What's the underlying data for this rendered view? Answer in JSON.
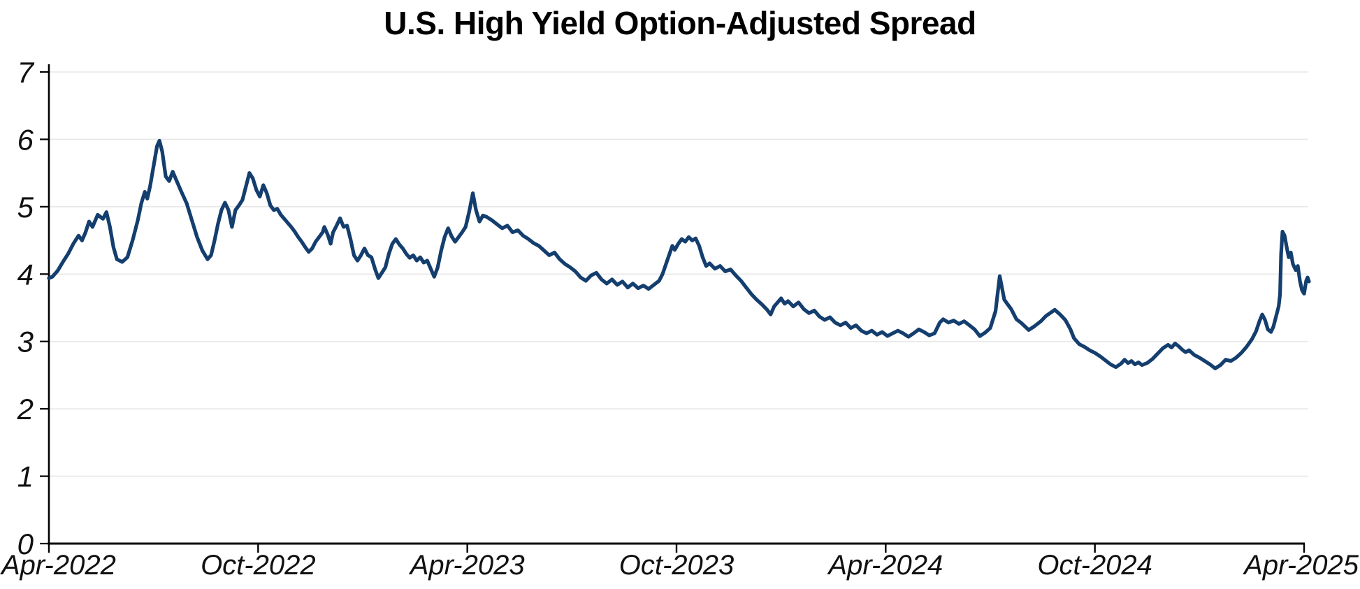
{
  "page": {
    "background": "#ffffff"
  },
  "header": {
    "title": "U.S. High Yield Option-Adjusted Spread"
  },
  "chart_data": {
    "type": "line",
    "title": "U.S. High Yield Option-Adjusted Spread",
    "series_name": "U.S. High Yield Option-Adjusted Spread",
    "unit": "percent",
    "xlabel": "",
    "ylabel": "",
    "ylim": [
      0,
      7
    ],
    "y_ticks": [
      0,
      1,
      2,
      3,
      4,
      5,
      6,
      7
    ],
    "x_unit": "months since Apr-2022",
    "x_range": [
      0,
      36.2
    ],
    "x_ticks": [
      {
        "t": 0,
        "label": "Apr-2022"
      },
      {
        "t": 6,
        "label": "Oct-2022"
      },
      {
        "t": 12,
        "label": "Apr-2023"
      },
      {
        "t": 18,
        "label": "Oct-2023"
      },
      {
        "t": 24,
        "label": "Apr-2024"
      },
      {
        "t": 30,
        "label": "Oct-2024"
      },
      {
        "t": 36,
        "label": "Apr-2025"
      }
    ],
    "grid": "horizontal",
    "legend": "none",
    "line_color": "#143e6e",
    "axis_color": "#000000",
    "grid_color": "#e7e7e7",
    "label_color": "#111111",
    "points": [
      [
        0,
        3.94
      ],
      [
        0.1,
        3.96
      ],
      [
        0.25,
        4.05
      ],
      [
        0.4,
        4.18
      ],
      [
        0.55,
        4.3
      ],
      [
        0.7,
        4.45
      ],
      [
        0.85,
        4.57
      ],
      [
        0.95,
        4.5
      ],
      [
        1.05,
        4.62
      ],
      [
        1.15,
        4.78
      ],
      [
        1.25,
        4.7
      ],
      [
        1.4,
        4.88
      ],
      [
        1.55,
        4.82
      ],
      [
        1.65,
        4.92
      ],
      [
        1.75,
        4.7
      ],
      [
        1.85,
        4.4
      ],
      [
        1.95,
        4.22
      ],
      [
        2.1,
        4.18
      ],
      [
        2.25,
        4.25
      ],
      [
        2.4,
        4.5
      ],
      [
        2.55,
        4.8
      ],
      [
        2.65,
        5.05
      ],
      [
        2.75,
        5.22
      ],
      [
        2.82,
        5.12
      ],
      [
        2.9,
        5.3
      ],
      [
        3,
        5.6
      ],
      [
        3.1,
        5.9
      ],
      [
        3.17,
        5.98
      ],
      [
        3.25,
        5.82
      ],
      [
        3.35,
        5.45
      ],
      [
        3.45,
        5.38
      ],
      [
        3.55,
        5.52
      ],
      [
        3.65,
        5.4
      ],
      [
        3.8,
        5.22
      ],
      [
        3.95,
        5.05
      ],
      [
        4.1,
        4.8
      ],
      [
        4.25,
        4.55
      ],
      [
        4.4,
        4.35
      ],
      [
        4.55,
        4.22
      ],
      [
        4.65,
        4.28
      ],
      [
        4.75,
        4.5
      ],
      [
        4.85,
        4.75
      ],
      [
        4.95,
        4.95
      ],
      [
        5.05,
        5.06
      ],
      [
        5.15,
        4.95
      ],
      [
        5.25,
        4.7
      ],
      [
        5.35,
        4.95
      ],
      [
        5.45,
        5.02
      ],
      [
        5.55,
        5.1
      ],
      [
        5.65,
        5.3
      ],
      [
        5.75,
        5.5
      ],
      [
        5.85,
        5.42
      ],
      [
        5.95,
        5.25
      ],
      [
        6.05,
        5.15
      ],
      [
        6.15,
        5.32
      ],
      [
        6.25,
        5.2
      ],
      [
        6.35,
        5.02
      ],
      [
        6.45,
        4.95
      ],
      [
        6.55,
        4.97
      ],
      [
        6.65,
        4.88
      ],
      [
        6.75,
        4.82
      ],
      [
        6.85,
        4.76
      ],
      [
        6.95,
        4.7
      ],
      [
        7.05,
        4.63
      ],
      [
        7.15,
        4.55
      ],
      [
        7.25,
        4.48
      ],
      [
        7.35,
        4.4
      ],
      [
        7.45,
        4.33
      ],
      [
        7.55,
        4.38
      ],
      [
        7.65,
        4.48
      ],
      [
        7.75,
        4.55
      ],
      [
        7.85,
        4.62
      ],
      [
        7.9,
        4.7
      ],
      [
        8,
        4.58
      ],
      [
        8.08,
        4.45
      ],
      [
        8.15,
        4.62
      ],
      [
        8.25,
        4.72
      ],
      [
        8.35,
        4.83
      ],
      [
        8.45,
        4.7
      ],
      [
        8.55,
        4.72
      ],
      [
        8.65,
        4.52
      ],
      [
        8.75,
        4.28
      ],
      [
        8.85,
        4.2
      ],
      [
        8.95,
        4.28
      ],
      [
        9.05,
        4.38
      ],
      [
        9.15,
        4.28
      ],
      [
        9.25,
        4.25
      ],
      [
        9.35,
        4.08
      ],
      [
        9.45,
        3.94
      ],
      [
        9.55,
        4.02
      ],
      [
        9.65,
        4.1
      ],
      [
        9.75,
        4.3
      ],
      [
        9.85,
        4.45
      ],
      [
        9.95,
        4.52
      ],
      [
        10.05,
        4.44
      ],
      [
        10.15,
        4.38
      ],
      [
        10.25,
        4.3
      ],
      [
        10.35,
        4.24
      ],
      [
        10.45,
        4.28
      ],
      [
        10.55,
        4.2
      ],
      [
        10.65,
        4.25
      ],
      [
        10.75,
        4.17
      ],
      [
        10.85,
        4.2
      ],
      [
        10.95,
        4.08
      ],
      [
        11.05,
        3.96
      ],
      [
        11.15,
        4.1
      ],
      [
        11.25,
        4.35
      ],
      [
        11.35,
        4.55
      ],
      [
        11.45,
        4.68
      ],
      [
        11.55,
        4.56
      ],
      [
        11.65,
        4.48
      ],
      [
        11.75,
        4.55
      ],
      [
        11.85,
        4.62
      ],
      [
        11.95,
        4.7
      ],
      [
        12.05,
        4.92
      ],
      [
        12.16,
        5.2
      ],
      [
        12.25,
        4.95
      ],
      [
        12.35,
        4.78
      ],
      [
        12.45,
        4.87
      ],
      [
        12.55,
        4.85
      ],
      [
        12.7,
        4.8
      ],
      [
        12.85,
        4.74
      ],
      [
        13,
        4.68
      ],
      [
        13.15,
        4.72
      ],
      [
        13.3,
        4.62
      ],
      [
        13.45,
        4.65
      ],
      [
        13.6,
        4.57
      ],
      [
        13.75,
        4.52
      ],
      [
        13.9,
        4.46
      ],
      [
        14.05,
        4.42
      ],
      [
        14.2,
        4.35
      ],
      [
        14.35,
        4.28
      ],
      [
        14.5,
        4.32
      ],
      [
        14.65,
        4.22
      ],
      [
        14.8,
        4.15
      ],
      [
        14.95,
        4.1
      ],
      [
        15.1,
        4.04
      ],
      [
        15.25,
        3.95
      ],
      [
        15.4,
        3.9
      ],
      [
        15.55,
        3.98
      ],
      [
        15.7,
        4.02
      ],
      [
        15.85,
        3.92
      ],
      [
        16,
        3.86
      ],
      [
        16.15,
        3.92
      ],
      [
        16.3,
        3.84
      ],
      [
        16.45,
        3.89
      ],
      [
        16.6,
        3.8
      ],
      [
        16.75,
        3.86
      ],
      [
        16.9,
        3.79
      ],
      [
        17.05,
        3.83
      ],
      [
        17.2,
        3.78
      ],
      [
        17.35,
        3.84
      ],
      [
        17.5,
        3.9
      ],
      [
        17.6,
        4
      ],
      [
        17.7,
        4.15
      ],
      [
        17.8,
        4.3
      ],
      [
        17.88,
        4.42
      ],
      [
        17.95,
        4.36
      ],
      [
        18.05,
        4.45
      ],
      [
        18.15,
        4.52
      ],
      [
        18.25,
        4.48
      ],
      [
        18.35,
        4.55
      ],
      [
        18.45,
        4.5
      ],
      [
        18.55,
        4.53
      ],
      [
        18.65,
        4.42
      ],
      [
        18.75,
        4.25
      ],
      [
        18.85,
        4.12
      ],
      [
        18.95,
        4.16
      ],
      [
        19.1,
        4.08
      ],
      [
        19.25,
        4.12
      ],
      [
        19.4,
        4.04
      ],
      [
        19.55,
        4.07
      ],
      [
        19.7,
        3.98
      ],
      [
        19.85,
        3.9
      ],
      [
        20,
        3.8
      ],
      [
        20.15,
        3.7
      ],
      [
        20.3,
        3.62
      ],
      [
        20.45,
        3.55
      ],
      [
        20.6,
        3.47
      ],
      [
        20.7,
        3.4
      ],
      [
        20.8,
        3.52
      ],
      [
        20.9,
        3.58
      ],
      [
        21,
        3.64
      ],
      [
        21.1,
        3.56
      ],
      [
        21.2,
        3.6
      ],
      [
        21.35,
        3.52
      ],
      [
        21.5,
        3.58
      ],
      [
        21.65,
        3.48
      ],
      [
        21.8,
        3.42
      ],
      [
        21.95,
        3.46
      ],
      [
        22.1,
        3.37
      ],
      [
        22.25,
        3.32
      ],
      [
        22.4,
        3.36
      ],
      [
        22.55,
        3.28
      ],
      [
        22.7,
        3.24
      ],
      [
        22.85,
        3.28
      ],
      [
        23,
        3.2
      ],
      [
        23.15,
        3.24
      ],
      [
        23.3,
        3.16
      ],
      [
        23.45,
        3.12
      ],
      [
        23.6,
        3.16
      ],
      [
        23.75,
        3.1
      ],
      [
        23.9,
        3.14
      ],
      [
        24.05,
        3.08
      ],
      [
        24.2,
        3.12
      ],
      [
        24.35,
        3.16
      ],
      [
        24.5,
        3.12
      ],
      [
        24.65,
        3.07
      ],
      [
        24.8,
        3.12
      ],
      [
        24.95,
        3.18
      ],
      [
        25.1,
        3.14
      ],
      [
        25.25,
        3.09
      ],
      [
        25.4,
        3.12
      ],
      [
        25.55,
        3.28
      ],
      [
        25.65,
        3.33
      ],
      [
        25.8,
        3.28
      ],
      [
        25.95,
        3.31
      ],
      [
        26.1,
        3.26
      ],
      [
        26.25,
        3.3
      ],
      [
        26.4,
        3.24
      ],
      [
        26.55,
        3.18
      ],
      [
        26.7,
        3.08
      ],
      [
        26.85,
        3.13
      ],
      [
        27,
        3.2
      ],
      [
        27.15,
        3.45
      ],
      [
        27.27,
        3.97
      ],
      [
        27.4,
        3.62
      ],
      [
        27.5,
        3.55
      ],
      [
        27.6,
        3.48
      ],
      [
        27.75,
        3.33
      ],
      [
        27.9,
        3.27
      ],
      [
        28.1,
        3.17
      ],
      [
        28.25,
        3.22
      ],
      [
        28.45,
        3.3
      ],
      [
        28.6,
        3.38
      ],
      [
        28.85,
        3.47
      ],
      [
        29,
        3.4
      ],
      [
        29.15,
        3.32
      ],
      [
        29.3,
        3.18
      ],
      [
        29.4,
        3.05
      ],
      [
        29.55,
        2.96
      ],
      [
        29.7,
        2.92
      ],
      [
        29.85,
        2.87
      ],
      [
        30,
        2.83
      ],
      [
        30.15,
        2.78
      ],
      [
        30.3,
        2.72
      ],
      [
        30.45,
        2.66
      ],
      [
        30.6,
        2.62
      ],
      [
        30.75,
        2.67
      ],
      [
        30.85,
        2.73
      ],
      [
        30.95,
        2.68
      ],
      [
        31.05,
        2.71
      ],
      [
        31.15,
        2.66
      ],
      [
        31.25,
        2.69
      ],
      [
        31.35,
        2.65
      ],
      [
        31.5,
        2.68
      ],
      [
        31.65,
        2.74
      ],
      [
        31.8,
        2.82
      ],
      [
        31.95,
        2.9
      ],
      [
        32.1,
        2.95
      ],
      [
        32.2,
        2.91
      ],
      [
        32.3,
        2.97
      ],
      [
        32.4,
        2.93
      ],
      [
        32.5,
        2.88
      ],
      [
        32.6,
        2.84
      ],
      [
        32.7,
        2.87
      ],
      [
        32.85,
        2.8
      ],
      [
        33,
        2.76
      ],
      [
        33.15,
        2.71
      ],
      [
        33.3,
        2.66
      ],
      [
        33.45,
        2.6
      ],
      [
        33.6,
        2.65
      ],
      [
        33.75,
        2.73
      ],
      [
        33.9,
        2.71
      ],
      [
        34.05,
        2.76
      ],
      [
        34.2,
        2.83
      ],
      [
        34.35,
        2.92
      ],
      [
        34.5,
        3.03
      ],
      [
        34.62,
        3.15
      ],
      [
        34.72,
        3.3
      ],
      [
        34.8,
        3.4
      ],
      [
        34.88,
        3.32
      ],
      [
        34.96,
        3.18
      ],
      [
        35.05,
        3.14
      ],
      [
        35.12,
        3.22
      ],
      [
        35.2,
        3.38
      ],
      [
        35.27,
        3.52
      ],
      [
        35.31,
        3.7
      ],
      [
        35.34,
        4.3
      ],
      [
        35.38,
        4.63
      ],
      [
        35.44,
        4.57
      ],
      [
        35.5,
        4.4
      ],
      [
        35.56,
        4.25
      ],
      [
        35.62,
        4.32
      ],
      [
        35.68,
        4.15
      ],
      [
        35.76,
        4.06
      ],
      [
        35.82,
        4.12
      ],
      [
        35.88,
        3.9
      ],
      [
        35.94,
        3.76
      ],
      [
        36,
        3.71
      ],
      [
        36.06,
        3.9
      ],
      [
        36.1,
        3.95
      ],
      [
        36.14,
        3.89
      ]
    ]
  }
}
